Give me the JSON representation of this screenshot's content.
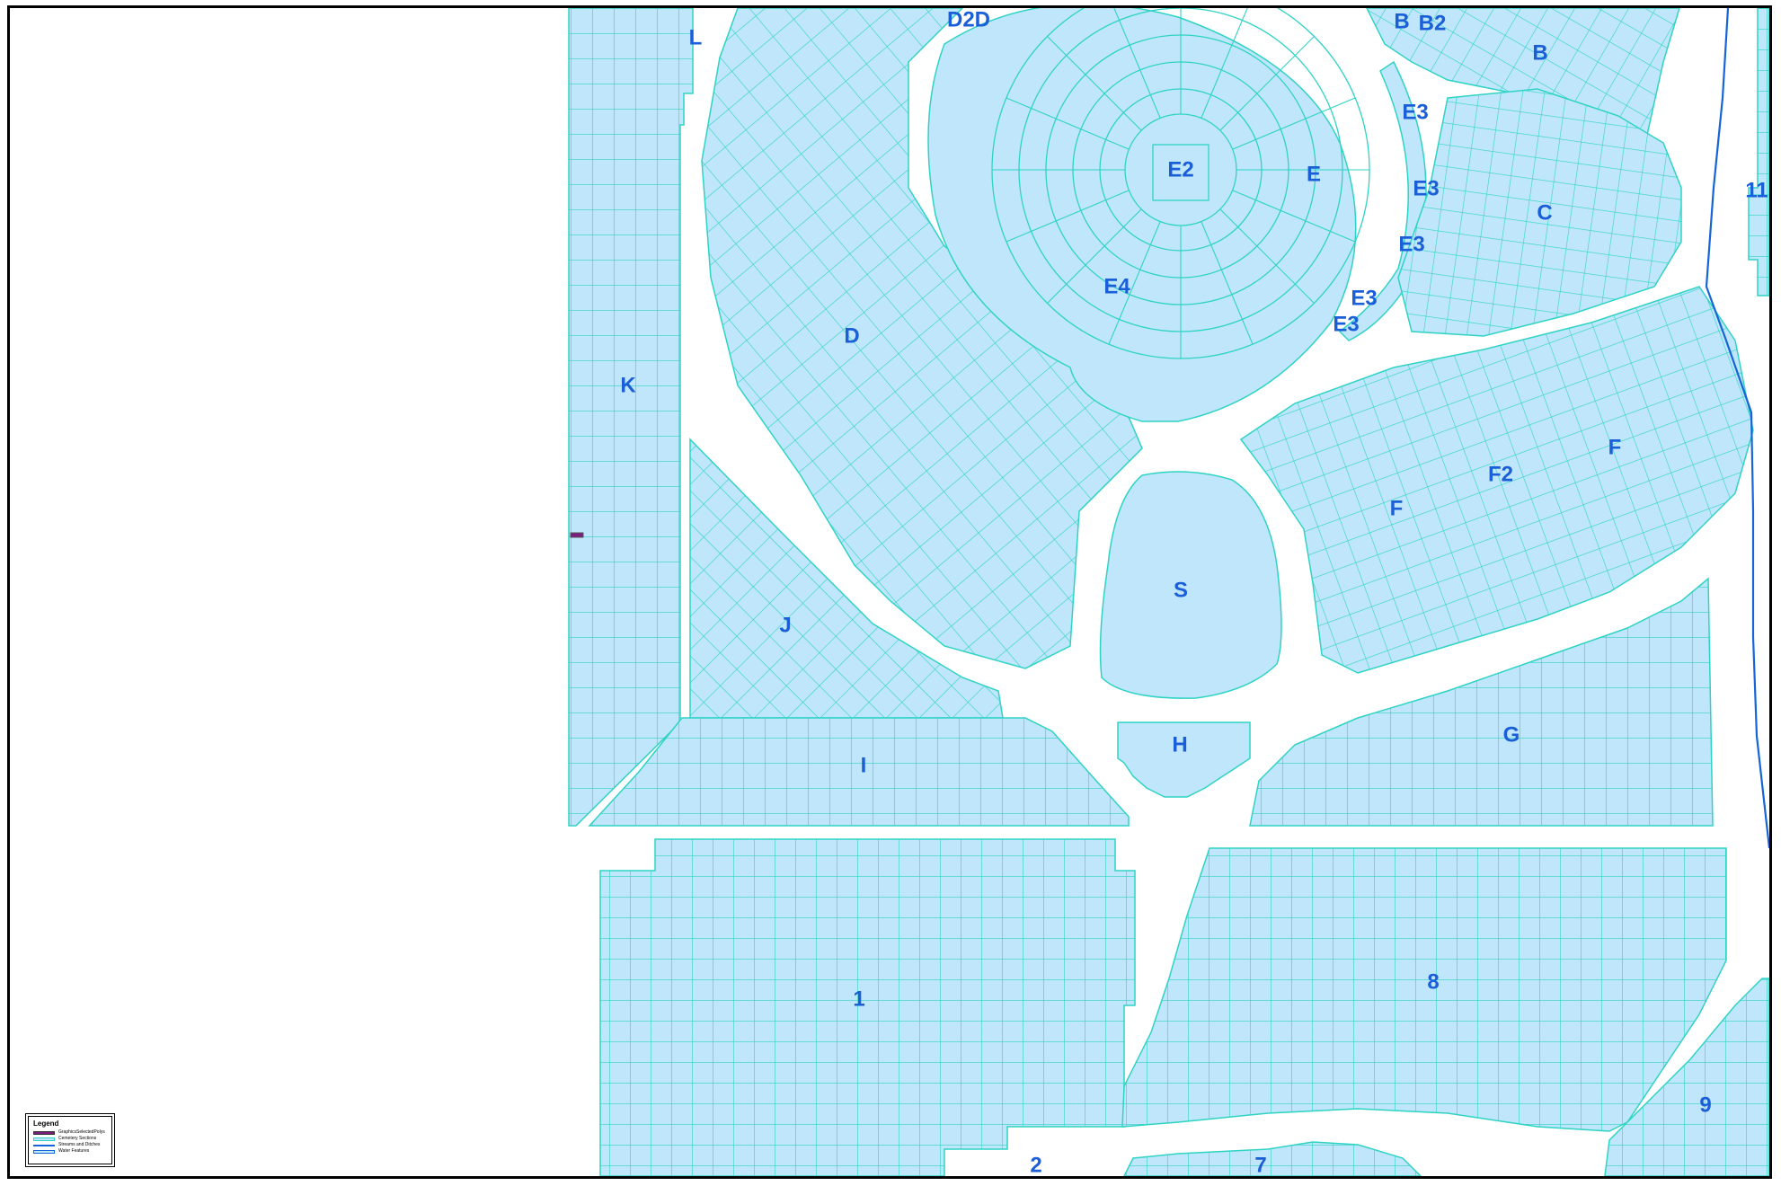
{
  "colors": {
    "fill": "#bfe6fb",
    "grid": "#2fd3c4",
    "label": "#1a5fd8",
    "stream": "#1565d8",
    "selected": "#7a1d7e"
  },
  "sections": [
    {
      "id": "L",
      "label": "L"
    },
    {
      "id": "D2D",
      "label": "D2D"
    },
    {
      "id": "B-left",
      "label": "B"
    },
    {
      "id": "B2",
      "label": "B2"
    },
    {
      "id": "B-right",
      "label": "B"
    },
    {
      "id": "E3-a",
      "label": "E3"
    },
    {
      "id": "E2",
      "label": "E2"
    },
    {
      "id": "E",
      "label": "E"
    },
    {
      "id": "E3-b",
      "label": "E3"
    },
    {
      "id": "11",
      "label": "11"
    },
    {
      "id": "C",
      "label": "C"
    },
    {
      "id": "E3-c",
      "label": "E3"
    },
    {
      "id": "E4",
      "label": "E4"
    },
    {
      "id": "E3-d",
      "label": "E3"
    },
    {
      "id": "E3-e",
      "label": "E3"
    },
    {
      "id": "D",
      "label": "D"
    },
    {
      "id": "K",
      "label": "K"
    },
    {
      "id": "F-right",
      "label": "F"
    },
    {
      "id": "F2",
      "label": "F2"
    },
    {
      "id": "F-left",
      "label": "F"
    },
    {
      "id": "S",
      "label": "S"
    },
    {
      "id": "J",
      "label": "J"
    },
    {
      "id": "H",
      "label": "H"
    },
    {
      "id": "G",
      "label": "G"
    },
    {
      "id": "I",
      "label": "I"
    },
    {
      "id": "8",
      "label": "8"
    },
    {
      "id": "1",
      "label": "1"
    },
    {
      "id": "9",
      "label": "9"
    },
    {
      "id": "2",
      "label": "2"
    },
    {
      "id": "7",
      "label": "7"
    }
  ],
  "legend": {
    "title": "Legend",
    "items": [
      {
        "label": "GraphicsSelectedPolys",
        "color": "#7a1d7e"
      },
      {
        "label": "Cemetery Sections",
        "color": "#bfe6fb"
      },
      {
        "label": "Streams and Ditches",
        "color": "#1565d8"
      },
      {
        "label": "Water Features",
        "color": "#bfe6fb"
      }
    ]
  }
}
